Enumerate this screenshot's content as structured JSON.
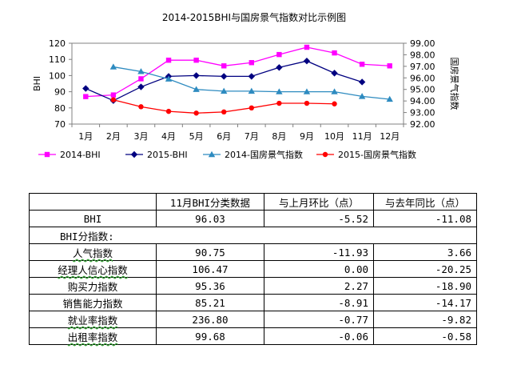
{
  "chart_data": {
    "type": "line",
    "title": "2014-2015BHI与国房景气指数对比示例图",
    "categories": [
      "1月",
      "2月",
      "3月",
      "4月",
      "5月",
      "6月",
      "7月",
      "8月",
      "9月",
      "10月",
      "11月",
      "12月"
    ],
    "ylabel": "BHI",
    "y2label": "国房景气指数",
    "ylim": [
      70,
      120
    ],
    "y2lim": [
      92.0,
      99.0
    ],
    "yticks": [
      "70",
      "80",
      "90",
      "100",
      "110",
      "120"
    ],
    "y2ticks": [
      "92.00",
      "93.00",
      "94.00",
      "95.00",
      "96.00",
      "97.00",
      "98.00",
      "99.00"
    ],
    "legend_position": "bottom",
    "series": [
      {
        "name": "2014-BHI",
        "axis": "left",
        "color": "#ff00ff",
        "marker": "square",
        "values": [
          87,
          88,
          98,
          109.5,
          109.5,
          106,
          108,
          113,
          117.5,
          114,
          107,
          106
        ]
      },
      {
        "name": "2015-BHI",
        "axis": "left",
        "color": "#000080",
        "marker": "diamond",
        "values": [
          92,
          84.5,
          93,
          99.5,
          100,
          99.5,
          99.5,
          105,
          109,
          101.5,
          96,
          null
        ]
      },
      {
        "name": "2014-国房景气指数",
        "axis": "right",
        "color": "#2e8bc0",
        "marker": "triangle",
        "values": [
          null,
          96.95,
          96.55,
          95.9,
          95.0,
          94.85,
          94.85,
          94.8,
          94.8,
          94.8,
          94.4,
          94.15
        ]
      },
      {
        "name": "2015-国房景气指数",
        "axis": "right",
        "color": "#ff0000",
        "marker": "circle",
        "values": [
          null,
          94.1,
          93.5,
          93.1,
          92.95,
          93.05,
          93.4,
          93.8,
          93.8,
          93.75,
          null,
          null
        ]
      }
    ]
  },
  "table": {
    "header": [
      "",
      "11月BHI分类数据",
      "与上月环比（点）",
      "与去年同比（点）"
    ],
    "rows": [
      {
        "label": "BHI",
        "cells": [
          "96.03",
          "-5.52",
          "-11.08"
        ],
        "underline": false
      },
      {
        "label": "BHI分指数:",
        "cells": [],
        "section": true
      },
      {
        "label": "人气指数",
        "cells": [
          "90.75",
          "-11.93",
          "3.66"
        ],
        "underline": true
      },
      {
        "label": "经理人信心指数",
        "cells": [
          "106.47",
          "0.00",
          "-20.25"
        ],
        "underline": true
      },
      {
        "label": "购买力指数",
        "cells": [
          "95.36",
          "2.27",
          "-18.90"
        ],
        "underline": false
      },
      {
        "label": "销售能力指数",
        "cells": [
          "85.21",
          "-8.91",
          "-14.17"
        ],
        "underline": false
      },
      {
        "label": "就业率指数",
        "cells": [
          "236.80",
          "-0.77",
          "-9.82"
        ],
        "underline": true
      },
      {
        "label": "出租率指数",
        "cells": [
          "99.68",
          "-0.06",
          "-0.58"
        ],
        "underline": true
      }
    ]
  }
}
